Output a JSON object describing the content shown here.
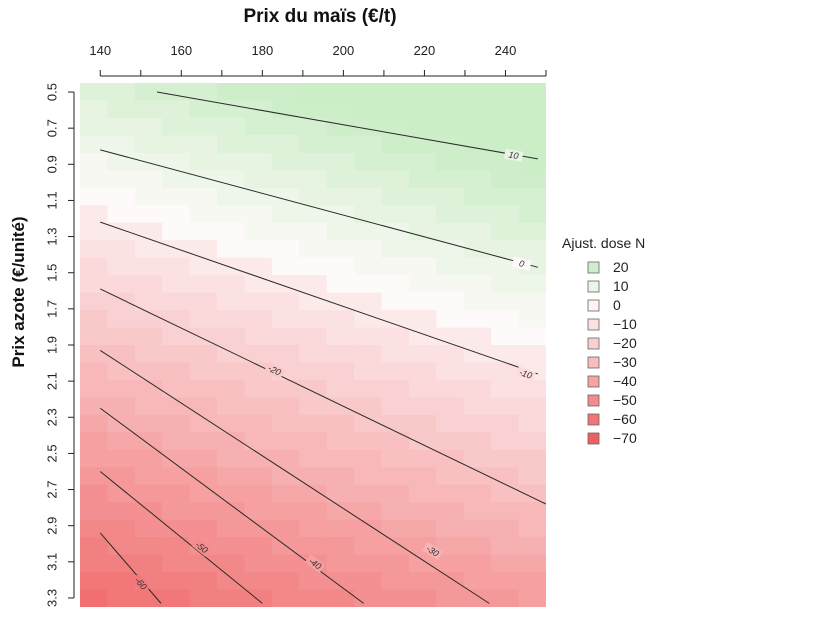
{
  "chart_data": {
    "type": "heatmap",
    "title": "Prix du maïs (€/t)",
    "xlabel": "Prix du maïs (€/t)",
    "ylabel": "Prix azote (€/unité)",
    "x_ticks": [
      140,
      160,
      180,
      200,
      220,
      240
    ],
    "y_ticks": [
      "0.5",
      "0.7",
      "0.9",
      "1.1",
      "1.3",
      "1.5",
      "1.7",
      "1.9",
      "2.1",
      "2.3",
      "2.5",
      "2.7",
      "2.9",
      "3.1",
      "3.3"
    ],
    "xlim": [
      135,
      250
    ],
    "ylim": [
      0.45,
      3.35
    ],
    "legend_title": "Ajust. dose N",
    "legend": [
      {
        "label": "20",
        "color": "#cfeecd"
      },
      {
        "label": "10",
        "color": "#e9f7e7"
      },
      {
        "label": "0",
        "color": "#fdf3f3"
      },
      {
        "label": "−10",
        "color": "#fbe1e2"
      },
      {
        "label": "−20",
        "color": "#f9cfd0"
      },
      {
        "label": "−30",
        "color": "#f8bdbe"
      },
      {
        "label": "−40",
        "color": "#f6a3a4"
      },
      {
        "label": "−50",
        "color": "#f38b8c"
      },
      {
        "label": "−60",
        "color": "#f17576"
      },
      {
        "label": "−70",
        "color": "#ef5f60"
      }
    ],
    "contours": [
      {
        "label": "10",
        "level": 10,
        "points": [
          [
            154,
            0.5
          ],
          [
            248,
            0.87
          ]
        ],
        "label_at": [
          242,
          0.85
        ]
      },
      {
        "label": "0",
        "level": 0,
        "points": [
          [
            140,
            0.82
          ],
          [
            248,
            1.47
          ]
        ],
        "label_at": [
          244,
          1.45
        ]
      },
      {
        "label": "-10",
        "level": -10,
        "points": [
          [
            140,
            1.22
          ],
          [
            248,
            2.06
          ]
        ],
        "label_at": [
          245,
          2.06
        ]
      },
      {
        "label": "-20",
        "level": -20,
        "points": [
          [
            140,
            1.59
          ],
          [
            250,
            2.78
          ]
        ],
        "label_at": [
          183,
          2.04
        ]
      },
      {
        "label": "-30",
        "level": -30,
        "points": [
          [
            140,
            1.93
          ],
          [
            236,
            3.33
          ]
        ],
        "label_at": [
          222,
          3.04
        ]
      },
      {
        "label": "-40",
        "level": -40,
        "points": [
          [
            140,
            2.25
          ],
          [
            205,
            3.33
          ]
        ],
        "label_at": [
          193,
          3.11
        ]
      },
      {
        "label": "-50",
        "level": -50,
        "points": [
          [
            140,
            2.6
          ],
          [
            180,
            3.33
          ]
        ],
        "label_at": [
          165,
          3.02
        ]
      },
      {
        "label": "-60",
        "level": -60,
        "points": [
          [
            140,
            2.94
          ],
          [
            155,
            3.33
          ]
        ],
        "label_at": [
          150,
          3.22
        ]
      }
    ]
  }
}
